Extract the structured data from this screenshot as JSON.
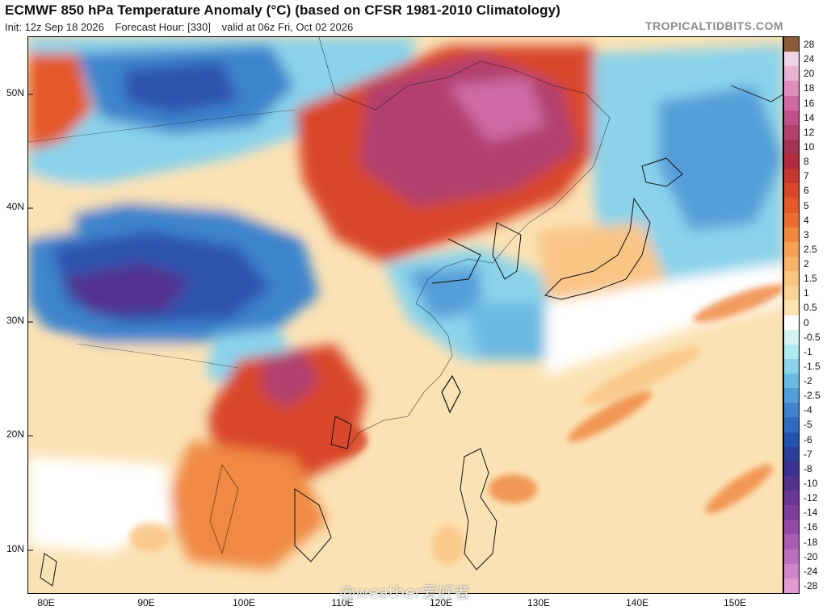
{
  "header": {
    "title": "ECMWF 850 hPa Temperature Anomaly (°C) (based on CFSR 1981-2010 Climatology)",
    "init": "Init: 12z Sep 18 2026",
    "forecast_hour": "Forecast Hour: [330]",
    "valid": "valid at 06z Fri, Oct 02 2026",
    "site": "TROPICALTIDBITS.COM"
  },
  "axes": {
    "latitudes": [
      "50N",
      "40N",
      "30N",
      "20N",
      "10N"
    ],
    "longitudes": [
      "80E",
      "90E",
      "100E",
      "110E",
      "120E",
      "130E",
      "140E",
      "150E"
    ]
  },
  "colorbar": {
    "labels": [
      "28",
      "24",
      "20",
      "18",
      "16",
      "14",
      "12",
      "10",
      "8",
      "7",
      "6",
      "5",
      "4",
      "3",
      "2.5",
      "2",
      "1.5",
      "1",
      "0.5",
      "0",
      "-0.5",
      "-1",
      "-1.5",
      "-2",
      "-2.5",
      "-4",
      "-5",
      "-6",
      "-7",
      "-8",
      "-10",
      "-12",
      "-14",
      "-16",
      "-18",
      "-20",
      "-24",
      "-28"
    ],
    "colors": [
      "#8a5a3a",
      "#f0d2e4",
      "#eab2d2",
      "#e08cbc",
      "#cf6aa6",
      "#c15089",
      "#b1416e",
      "#a13355",
      "#b32a3c",
      "#c7362f",
      "#d9462a",
      "#e4582a",
      "#ec6d33",
      "#f08840",
      "#f4a055",
      "#f7b46a",
      "#f9c47f",
      "#fbd495",
      "#fde3b0",
      "#ffffff",
      "#d4f4f4",
      "#aeeaef",
      "#8ad3eb",
      "#6cb9e3",
      "#549ed9",
      "#3e84cd",
      "#2d6bbf",
      "#2352ad",
      "#2a3f9a",
      "#3b3290",
      "#53318f",
      "#6a3596",
      "#7f3e9f",
      "#934ba8",
      "#a85db3",
      "#bb70bd",
      "#cf85c9",
      "#e09bd5"
    ]
  },
  "map": {
    "region": "East Asia / Western Pacific",
    "colors": {
      "ocean_warm": "#fbe2b4",
      "warm_light": "#f9c585",
      "warm": "#f08a44",
      "hot": "#d9462a",
      "very_hot": "#b1416e",
      "cool_light": "#aeeaef",
      "cool": "#6cb9e3",
      "cold": "#3e84cd",
      "very_cold": "#2d52ad",
      "coldest": "#53318f",
      "neutral": "#ffffff"
    }
  },
  "watermark": "@weather爱好者"
}
